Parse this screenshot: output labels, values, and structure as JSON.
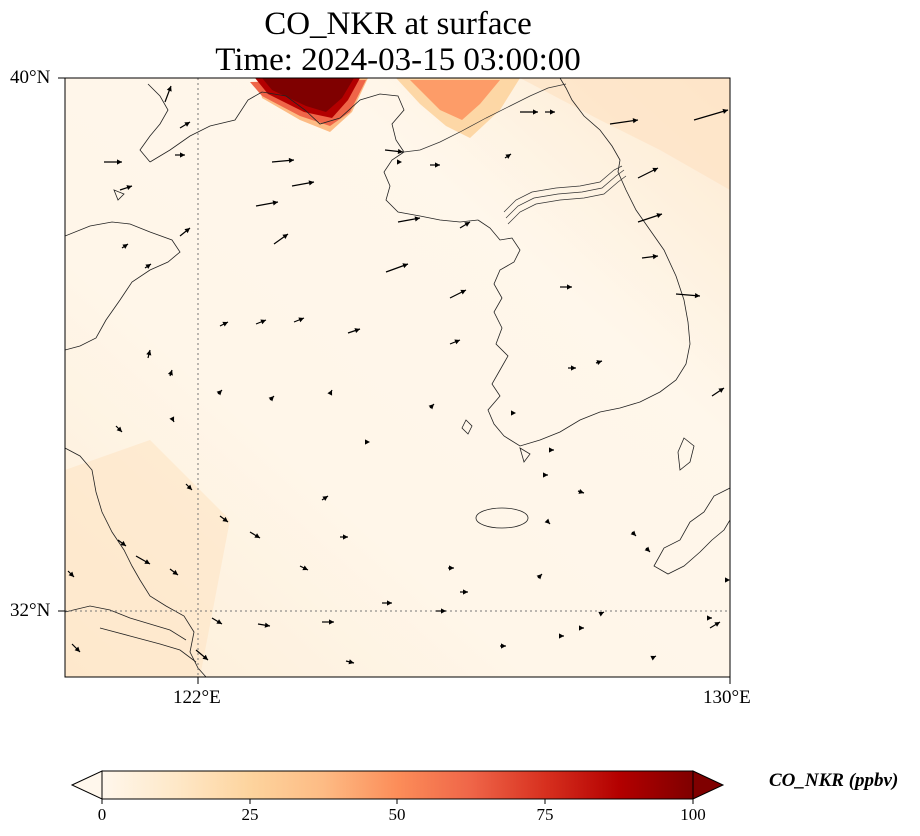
{
  "title": {
    "line1": "CO_NKR at surface",
    "line2": "Time: 2024-03-15 03:00:00"
  },
  "map": {
    "lat_ticks": [
      "40°N",
      "32°N"
    ],
    "lon_ticks": [
      "122°E",
      "130°E"
    ],
    "extent": {
      "lon_min": 120,
      "lon_max": 130,
      "lat_min": 31,
      "lat_max": 40
    },
    "gridlines": {
      "lat": [
        32
      ],
      "lon": [
        122
      ],
      "style": "dotted"
    },
    "features": [
      "coastlines",
      "country borders",
      "wind vectors",
      "CO concentration field"
    ]
  },
  "colorbar": {
    "label": "CO_NKR (ppbv)",
    "ticks": [
      "0",
      "25",
      "50",
      "75",
      "100"
    ],
    "vmin": 0,
    "vmax": 100,
    "colormap": "OrRd",
    "extend": "both",
    "colors": [
      "#fff7ec",
      "#fee8c8",
      "#fdd49e",
      "#fdbb84",
      "#fc8d59",
      "#ef6548",
      "#d7301f",
      "#b30000",
      "#7f0000"
    ]
  }
}
